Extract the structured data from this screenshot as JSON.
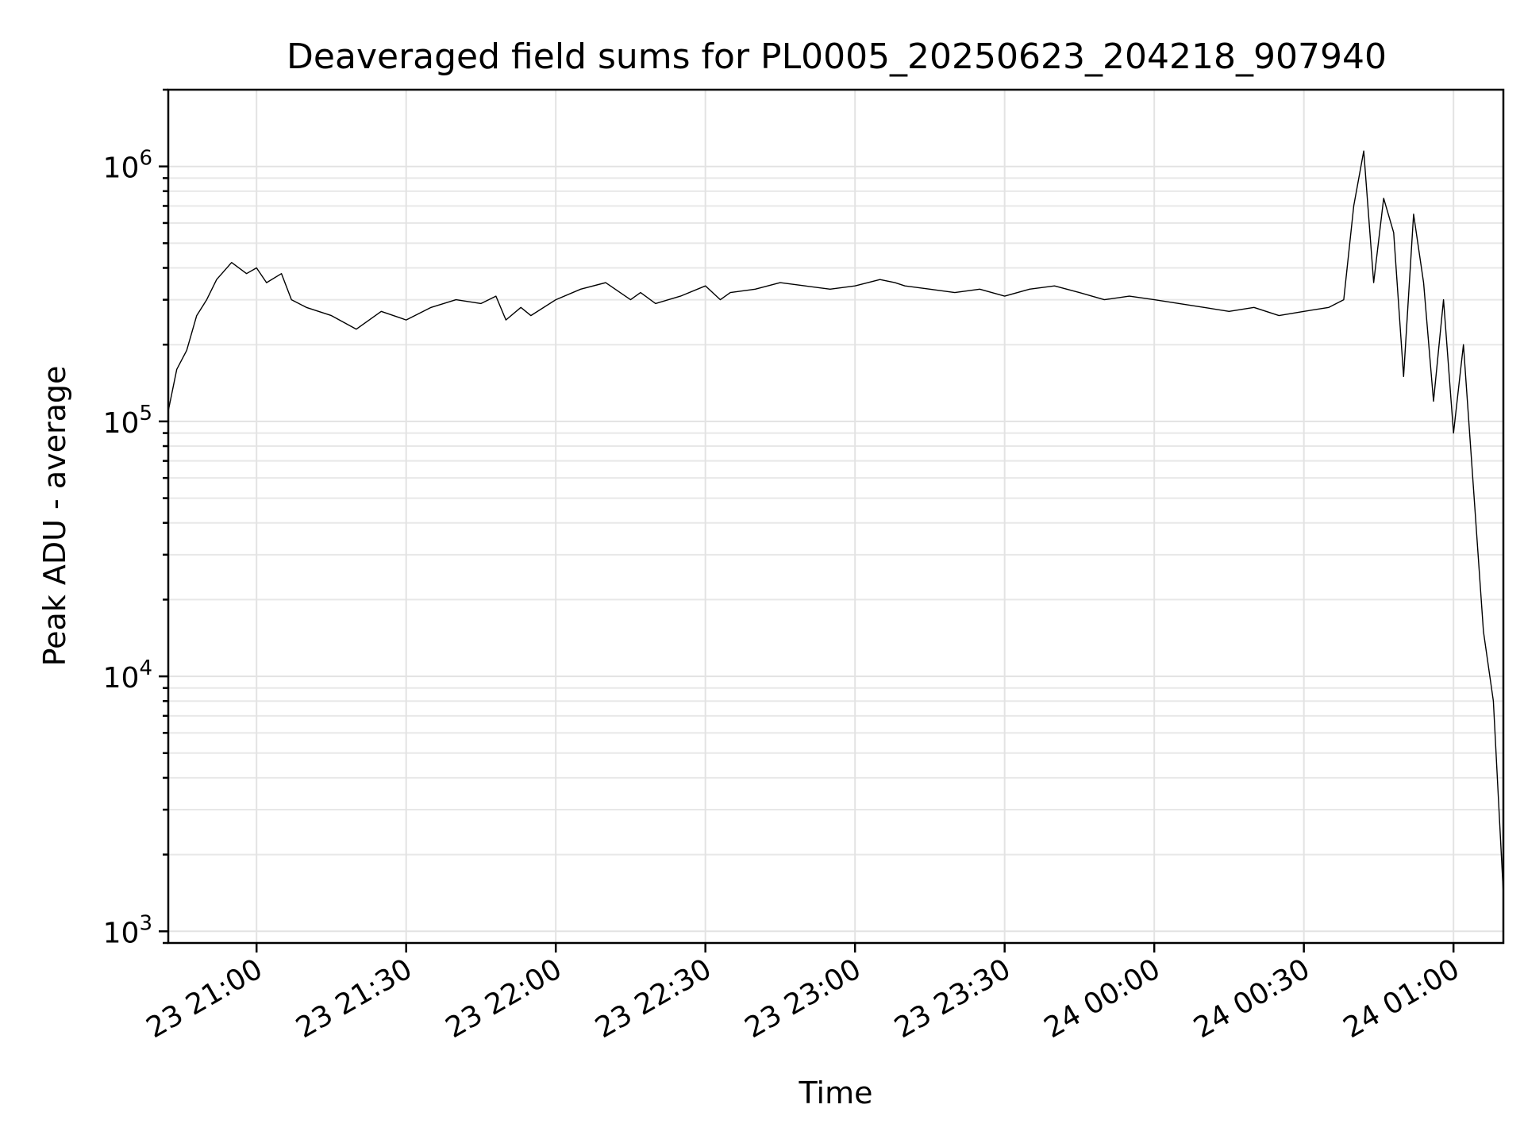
{
  "chart_data": {
    "type": "line",
    "title": "Deaveraged field sums for PL0005_20250623_204218_907940",
    "xlabel": "Time",
    "ylabel": "Peak ADU - average",
    "x_range": [
      "2025-06-23T20:42:18",
      "2025-06-24T01:10:00"
    ],
    "ylim": [
      900,
      2000000
    ],
    "yscale": "log",
    "grid": true,
    "line_color": "#000000",
    "x_ticks": [
      {
        "label": "23 21:00",
        "time": "2025-06-23T21:00:00"
      },
      {
        "label": "23 21:30",
        "time": "2025-06-23T21:30:00"
      },
      {
        "label": "23 22:00",
        "time": "2025-06-23T22:00:00"
      },
      {
        "label": "23 22:30",
        "time": "2025-06-23T22:30:00"
      },
      {
        "label": "23 23:00",
        "time": "2025-06-23T23:00:00"
      },
      {
        "label": "23 23:30",
        "time": "2025-06-23T23:30:00"
      },
      {
        "label": "24 00:00",
        "time": "2025-06-24T00:00:00"
      },
      {
        "label": "24 00:30",
        "time": "2025-06-24T00:30:00"
      },
      {
        "label": "24 01:00",
        "time": "2025-06-24T01:00:00"
      }
    ],
    "y_ticks": [
      {
        "base": "10",
        "exp": "3",
        "value": 1000
      },
      {
        "base": "10",
        "exp": "4",
        "value": 10000
      },
      {
        "base": "10",
        "exp": "5",
        "value": 100000
      },
      {
        "base": "10",
        "exp": "6",
        "value": 1000000
      }
    ],
    "series": [
      {
        "x": [
          "2025-06-23T20:42:18",
          "2025-06-23T20:44:00",
          "2025-06-23T20:46:00",
          "2025-06-23T20:48:00",
          "2025-06-23T20:50:00",
          "2025-06-23T20:52:00",
          "2025-06-23T20:55:00",
          "2025-06-23T20:58:00",
          "2025-06-23T21:00:00",
          "2025-06-23T21:02:00",
          "2025-06-23T21:05:00",
          "2025-06-23T21:07:00",
          "2025-06-23T21:10:00",
          "2025-06-23T21:15:00",
          "2025-06-23T21:20:00",
          "2025-06-23T21:25:00",
          "2025-06-23T21:30:00",
          "2025-06-23T21:35:00",
          "2025-06-23T21:40:00",
          "2025-06-23T21:45:00",
          "2025-06-23T21:48:00",
          "2025-06-23T21:50:00",
          "2025-06-23T21:53:00",
          "2025-06-23T21:55:00",
          "2025-06-23T22:00:00",
          "2025-06-23T22:05:00",
          "2025-06-23T22:10:00",
          "2025-06-23T22:15:00",
          "2025-06-23T22:17:00",
          "2025-06-23T22:20:00",
          "2025-06-23T22:25:00",
          "2025-06-23T22:30:00",
          "2025-06-23T22:33:00",
          "2025-06-23T22:35:00",
          "2025-06-23T22:40:00",
          "2025-06-23T22:45:00",
          "2025-06-23T22:50:00",
          "2025-06-23T22:55:00",
          "2025-06-23T23:00:00",
          "2025-06-23T23:05:00",
          "2025-06-23T23:08:00",
          "2025-06-23T23:10:00",
          "2025-06-23T23:15:00",
          "2025-06-23T23:20:00",
          "2025-06-23T23:25:00",
          "2025-06-23T23:30:00",
          "2025-06-23T23:35:00",
          "2025-06-23T23:40:00",
          "2025-06-23T23:45:00",
          "2025-06-23T23:50:00",
          "2025-06-23T23:55:00",
          "2025-06-24T00:00:00",
          "2025-06-24T00:05:00",
          "2025-06-24T00:10:00",
          "2025-06-24T00:15:00",
          "2025-06-24T00:20:00",
          "2025-06-24T00:25:00",
          "2025-06-24T00:30:00",
          "2025-06-24T00:35:00",
          "2025-06-24T00:38:00",
          "2025-06-24T00:40:00",
          "2025-06-24T00:42:00",
          "2025-06-24T00:44:00",
          "2025-06-24T00:46:00",
          "2025-06-24T00:48:00",
          "2025-06-24T00:50:00",
          "2025-06-24T00:52:00",
          "2025-06-24T00:54:00",
          "2025-06-24T00:56:00",
          "2025-06-24T00:58:00",
          "2025-06-24T01:00:00",
          "2025-06-24T01:02:00",
          "2025-06-24T01:04:00",
          "2025-06-24T01:06:00",
          "2025-06-24T01:08:00",
          "2025-06-24T01:10:00"
        ],
        "y": [
          110000,
          160000,
          190000,
          260000,
          300000,
          360000,
          420000,
          380000,
          400000,
          350000,
          380000,
          300000,
          280000,
          260000,
          230000,
          270000,
          250000,
          280000,
          300000,
          290000,
          310000,
          250000,
          280000,
          260000,
          300000,
          330000,
          350000,
          300000,
          320000,
          290000,
          310000,
          340000,
          300000,
          320000,
          330000,
          350000,
          340000,
          330000,
          340000,
          360000,
          350000,
          340000,
          330000,
          320000,
          330000,
          310000,
          330000,
          340000,
          320000,
          300000,
          310000,
          300000,
          290000,
          280000,
          270000,
          280000,
          260000,
          270000,
          280000,
          300000,
          700000,
          1150000,
          350000,
          750000,
          550000,
          150000,
          650000,
          350000,
          120000,
          300000,
          90000,
          200000,
          55000,
          15000,
          8000,
          1400
        ]
      }
    ]
  }
}
